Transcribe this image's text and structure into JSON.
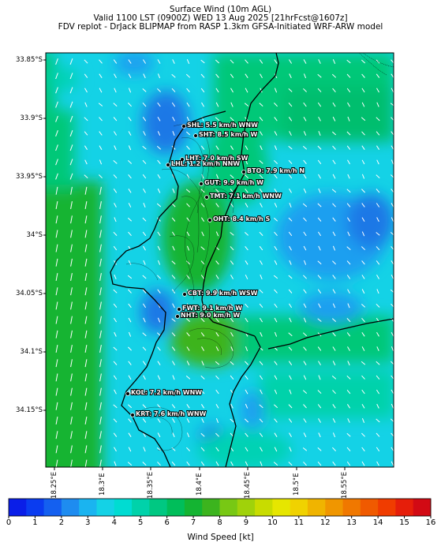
{
  "title": {
    "line1": "Surface Wind (10m AGL)",
    "line2": "Valid 1100 LST (0900Z) WED 13 Aug 2025 [21hrFcst@1607z]",
    "line3": "FDV replot - DrJack BLIPMAP from RASP 1.3km GFSA-Initiated WRF-ARW model"
  },
  "y_axis": {
    "ticks": [
      "33.85°S",
      "33.9°S",
      "33.95°S",
      "34°S",
      "34.05°S",
      "34.1°S",
      "34.15°S"
    ]
  },
  "x_axis": {
    "ticks": [
      "18.25°E",
      "18.3°E",
      "18.35°E",
      "18.4°E",
      "18.45°E",
      "18.5°E",
      "18.55°E"
    ]
  },
  "stations": [
    {
      "code": "SHL",
      "label": "SHL: 5.5 km/h WNW"
    },
    {
      "code": "SHT",
      "label": "SHT: 8.5 km/h W"
    },
    {
      "code": "LHT",
      "label": "LHT: 7.0 km/h SW"
    },
    {
      "code": "LHL",
      "label": "LHL: 1.2 km/h NNW"
    },
    {
      "code": "BTO",
      "label": "BTO: 7.9 km/h N"
    },
    {
      "code": "GUT",
      "label": "GUT: 9.9 km/h W"
    },
    {
      "code": "TMT",
      "label": "TMT: 7.1 km/h WNW"
    },
    {
      "code": "OHT",
      "label": "OHT: 8.4 km/h S"
    },
    {
      "code": "CBT",
      "label": "CBT: 9.9 km/h WSW"
    },
    {
      "code": "FWT",
      "label": "FWT: 9.1 km/h W"
    },
    {
      "code": "NHT",
      "label": "NHT: 9.0 km/h W"
    },
    {
      "code": "KOL",
      "label": "KOL: 7.2 km/h WNW"
    },
    {
      "code": "KRT",
      "label": "KRT: 7.6 km/h WNW"
    }
  ],
  "colorbar": {
    "label": "Wind Speed [kt]",
    "ticks": [
      "0",
      "1",
      "2",
      "3",
      "4",
      "5",
      "6",
      "7",
      "8",
      "9",
      "10",
      "11",
      "12",
      "13",
      "14",
      "15",
      "16"
    ],
    "colors": [
      "#0a1ee8",
      "#0a3cf0",
      "#1460f0",
      "#1e8cf0",
      "#1ab4f0",
      "#14d2e6",
      "#00dcd2",
      "#00d2aa",
      "#00c882",
      "#00be5a",
      "#14b432",
      "#3cb41e",
      "#78c814",
      "#a0d20a",
      "#c8dc00",
      "#e6e600",
      "#f0d200",
      "#f0b400",
      "#f09600",
      "#f07800",
      "#f05a00",
      "#f03c00",
      "#e61e0a",
      "#d20a14"
    ],
    "colors_note": ""
  },
  "field_colors": {
    "very_low": "#1e78e6",
    "low": "#1e9ff0",
    "cyan": "#14d2e6",
    "teal": "#00d2b4",
    "mid": "#00c878",
    "green": "#14b432",
    "strong": "#28b41e",
    "land": "#000000"
  }
}
